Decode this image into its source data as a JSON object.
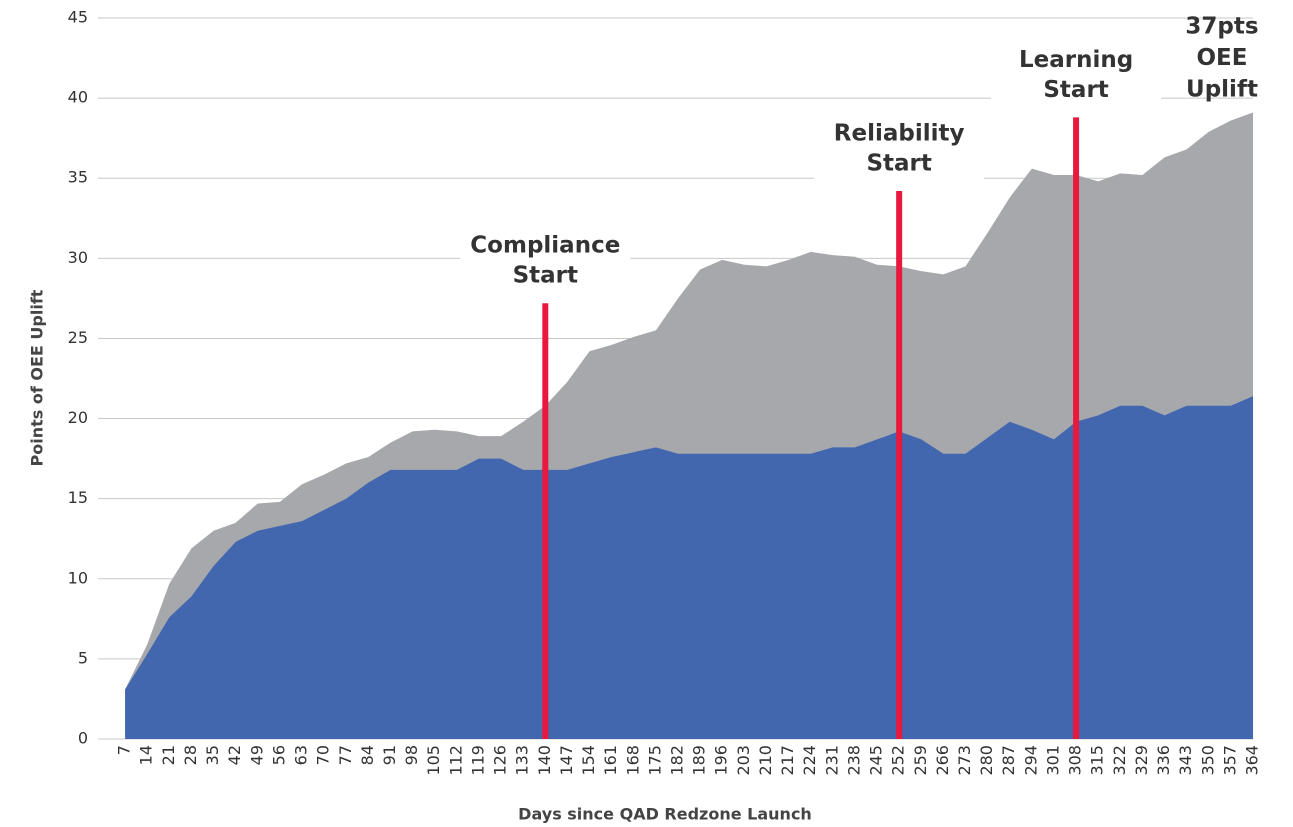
{
  "chart_data": {
    "type": "area",
    "xlabel": "Days since QAD Redzone Launch",
    "ylabel": "Points of OEE Uplift",
    "x": [
      7,
      14,
      21,
      28,
      35,
      42,
      49,
      56,
      63,
      70,
      77,
      84,
      91,
      98,
      105,
      112,
      119,
      126,
      133,
      140,
      147,
      154,
      161,
      168,
      175,
      182,
      189,
      196,
      203,
      210,
      217,
      224,
      231,
      238,
      245,
      252,
      259,
      266,
      273,
      280,
      287,
      294,
      301,
      308,
      315,
      322,
      329,
      336,
      343,
      350,
      357,
      364
    ],
    "series": [
      {
        "color": "#a7a8ac",
        "values": [
          3.1,
          5.9,
          9.7,
          11.9,
          13.0,
          13.5,
          14.7,
          14.8,
          15.9,
          16.5,
          17.2,
          17.6,
          18.5,
          19.2,
          19.3,
          19.2,
          18.9,
          18.9,
          19.8,
          20.8,
          22.3,
          24.2,
          24.6,
          25.1,
          25.5,
          27.5,
          29.3,
          29.9,
          29.6,
          29.5,
          29.9,
          30.4,
          30.2,
          30.1,
          29.6,
          29.5,
          29.2,
          29.0,
          29.5,
          31.6,
          33.8,
          35.6,
          35.2,
          35.2,
          34.8,
          35.3,
          35.2,
          36.3,
          36.8,
          37.9,
          38.6,
          39.1
        ]
      },
      {
        "color": "#4267ae",
        "values": [
          3.1,
          5.3,
          7.6,
          8.9,
          10.8,
          12.3,
          13.0,
          13.3,
          13.6,
          14.3,
          15.0,
          16.0,
          16.8,
          16.8,
          16.8,
          16.8,
          17.5,
          17.5,
          16.8,
          16.8,
          16.8,
          17.2,
          17.6,
          17.9,
          18.2,
          17.8,
          17.8,
          17.8,
          17.8,
          17.8,
          17.8,
          17.8,
          18.2,
          18.2,
          18.7,
          19.2,
          18.7,
          17.8,
          17.8,
          18.8,
          19.8,
          19.3,
          18.7,
          19.8,
          20.2,
          20.8,
          20.8,
          20.2,
          20.8,
          20.8,
          20.8,
          21.4
        ]
      }
    ],
    "xlim": [
      0,
      364
    ],
    "ylim": [
      0,
      45
    ],
    "yticks": [
      0,
      5,
      10,
      15,
      20,
      25,
      30,
      35,
      40,
      45
    ],
    "grid": true,
    "annotations": [
      {
        "x": 140,
        "y": 27.2,
        "color": "#e8193c",
        "lines": [
          "Compliance",
          "Start"
        ]
      },
      {
        "x": 252,
        "y": 34.2,
        "color": "#e8193c",
        "lines": [
          "Reliability",
          "Start"
        ]
      },
      {
        "x": 308,
        "y": 38.8,
        "color": "#e8193c",
        "lines": [
          "Learning",
          "Start"
        ]
      }
    ],
    "callout": {
      "color": "#e8193c",
      "lines": [
        "37pts",
        "OEE",
        "Uplift"
      ]
    }
  }
}
